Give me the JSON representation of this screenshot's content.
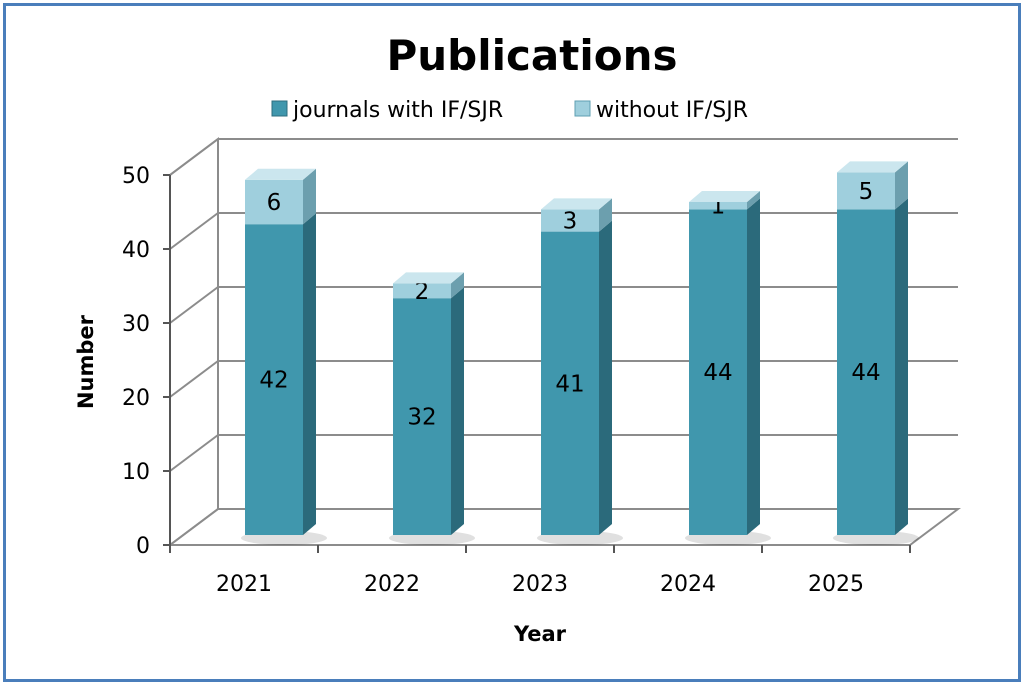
{
  "chart_data": {
    "type": "bar",
    "stacked": true,
    "three_d": true,
    "title": "Publications",
    "xlabel": "Year",
    "ylabel": "Number",
    "categories": [
      "2021",
      "2022",
      "2023",
      "2024",
      "2025"
    ],
    "series": [
      {
        "name": "journals with IF/SJR",
        "values": [
          42,
          32,
          41,
          44,
          44
        ],
        "color": "#4097ad"
      },
      {
        "name": "without IF/SJR",
        "values": [
          6,
          2,
          3,
          1,
          5
        ],
        "color": "#9fcfdd"
      }
    ],
    "ylim": [
      0,
      50
    ],
    "yticks": [
      "0",
      "10",
      "20",
      "30",
      "40",
      "50"
    ],
    "grid": true,
    "legend": "top",
    "frame_color": "#4a7ebb"
  }
}
